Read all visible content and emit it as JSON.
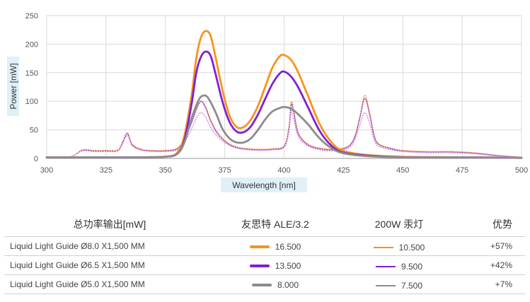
{
  "chart_data": {
    "type": "line",
    "xlabel": "Wavelength [nm]",
    "ylabel": "Power [mW]",
    "xlim": [
      300,
      500
    ],
    "ylim": [
      0,
      250
    ],
    "xticks": [
      300,
      325,
      350,
      375,
      400,
      425,
      450,
      475,
      500
    ],
    "yticks": [
      0,
      50,
      100,
      150,
      200,
      250
    ],
    "grid": true,
    "series": [
      {
        "color": "#f7931e",
        "style": "solid",
        "x": [
          300,
          320,
          340,
          350,
          355,
          358,
          361,
          363,
          365,
          367,
          369,
          371,
          374,
          377,
          380,
          383,
          386,
          389,
          392,
          395,
          398,
          400,
          403,
          406,
          410,
          415,
          420,
          425,
          435,
          450,
          475,
          500
        ],
        "y": [
          2,
          2,
          2,
          3,
          10,
          40,
          110,
          175,
          212,
          223,
          215,
          180,
          120,
          75,
          55,
          55,
          68,
          92,
          125,
          158,
          178,
          181,
          172,
          150,
          110,
          60,
          28,
          13,
          6,
          3,
          2,
          1
        ]
      },
      {
        "color": "#7f1fd8",
        "style": "solid",
        "x": [
          300,
          320,
          340,
          350,
          355,
          358,
          361,
          363,
          365,
          367,
          369,
          371,
          374,
          377,
          380,
          383,
          386,
          389,
          392,
          395,
          398,
          400,
          403,
          406,
          410,
          415,
          420,
          425,
          435,
          450,
          475,
          500
        ],
        "y": [
          2,
          2,
          2,
          3,
          8,
          32,
          95,
          150,
          178,
          187,
          180,
          150,
          100,
          64,
          47,
          46,
          56,
          77,
          104,
          130,
          148,
          152,
          143,
          124,
          90,
          48,
          22,
          10,
          5,
          2,
          2,
          1
        ]
      },
      {
        "color": "#8c8c8c",
        "style": "solid",
        "x": [
          300,
          320,
          340,
          350,
          355,
          358,
          361,
          364,
          366,
          368,
          371,
          374,
          377,
          380,
          383,
          386,
          389,
          392,
          395,
          398,
          400,
          403,
          406,
          410,
          415,
          420,
          425,
          435,
          450,
          475,
          500
        ],
        "y": [
          2,
          2,
          2,
          3,
          8,
          28,
          70,
          102,
          110,
          106,
          82,
          52,
          35,
          28,
          28,
          35,
          50,
          68,
          82,
          88,
          90,
          87,
          77,
          60,
          35,
          18,
          9,
          4,
          2,
          2,
          1
        ]
      },
      {
        "color": "#f7931e",
        "style": "dotted",
        "x": [
          300,
          310,
          315,
          320,
          325,
          330,
          332,
          334,
          336,
          340,
          345,
          350,
          355,
          358,
          361,
          363,
          365,
          367,
          369,
          372,
          376,
          380,
          385,
          390,
          395,
          400,
          402,
          403,
          404,
          406,
          410,
          415,
          420,
          425,
          428,
          430,
          432,
          434,
          436,
          438,
          440,
          445,
          450,
          460,
          470,
          480,
          490,
          500
        ],
        "y": [
          2,
          3,
          15,
          14,
          14,
          15,
          30,
          45,
          25,
          16,
          14,
          14,
          18,
          35,
          65,
          88,
          100,
          90,
          68,
          45,
          28,
          20,
          17,
          16,
          17,
          22,
          55,
          98,
          85,
          45,
          25,
          18,
          16,
          18,
          25,
          42,
          75,
          110,
          80,
          40,
          25,
          18,
          14,
          12,
          12,
          10,
          5,
          2
        ]
      },
      {
        "color": "#8e44c9",
        "style": "dotted",
        "x": [
          300,
          310,
          315,
          320,
          325,
          330,
          332,
          334,
          336,
          340,
          345,
          350,
          355,
          358,
          361,
          363,
          365,
          367,
          369,
          372,
          376,
          380,
          385,
          390,
          395,
          400,
          402,
          403,
          404,
          406,
          410,
          415,
          420,
          425,
          428,
          430,
          432,
          434,
          436,
          438,
          440,
          445,
          450,
          460,
          470,
          480,
          490,
          500
        ],
        "y": [
          2,
          3,
          14,
          13,
          13,
          14,
          28,
          43,
          24,
          15,
          13,
          13,
          17,
          33,
          62,
          85,
          100,
          88,
          66,
          43,
          27,
          19,
          16,
          15,
          16,
          21,
          52,
          94,
          82,
          43,
          24,
          17,
          15,
          17,
          24,
          40,
          72,
          105,
          77,
          38,
          24,
          17,
          13,
          11,
          11,
          9,
          5,
          2
        ]
      },
      {
        "color": "#e08fe0",
        "style": "dotted",
        "x": [
          300,
          310,
          315,
          320,
          325,
          330,
          332,
          334,
          336,
          340,
          345,
          350,
          355,
          358,
          361,
          363,
          365,
          367,
          369,
          372,
          376,
          380,
          385,
          390,
          395,
          400,
          402,
          403,
          404,
          406,
          410,
          415,
          420,
          425,
          428,
          430,
          432,
          434,
          436,
          438,
          440,
          445,
          450,
          460,
          470,
          480,
          490,
          500
        ],
        "y": [
          2,
          3,
          13,
          12,
          12,
          13,
          26,
          40,
          22,
          14,
          12,
          12,
          15,
          28,
          52,
          70,
          80,
          72,
          55,
          38,
          25,
          18,
          15,
          14,
          15,
          19,
          45,
          82,
          70,
          38,
          22,
          15,
          13,
          15,
          21,
          35,
          60,
          80,
          62,
          32,
          21,
          15,
          12,
          10,
          10,
          8,
          4,
          2
        ]
      }
    ],
    "legend": {
      "headers": [
        "总功率输出[mW]",
        "友思特 ALE/3.2",
        "200W 汞灯",
        "优势"
      ],
      "rows": [
        {
          "label": "Liquid Light Guide Ø8.0 X1,500 MM",
          "value_a": "16.500",
          "value_b": "10.500",
          "advantage": "+57%",
          "color_a": "#f7931e",
          "color_b": "#f7931e"
        },
        {
          "label": "Liquid Light Guide Ø6.5 X1,500 MM",
          "value_a": "13.500",
          "value_b": "9.500",
          "advantage": "+42%",
          "color_a": "#7f1fd8",
          "color_b": "#7f1fd8"
        },
        {
          "label": "Liquid Light Guide Ø5.0 X1,500 MM",
          "value_a": "8.000",
          "value_b": "7.500",
          "advantage": "+7%",
          "color_a": "#8c8c8c",
          "color_b": "#8c8c8c"
        }
      ]
    }
  }
}
